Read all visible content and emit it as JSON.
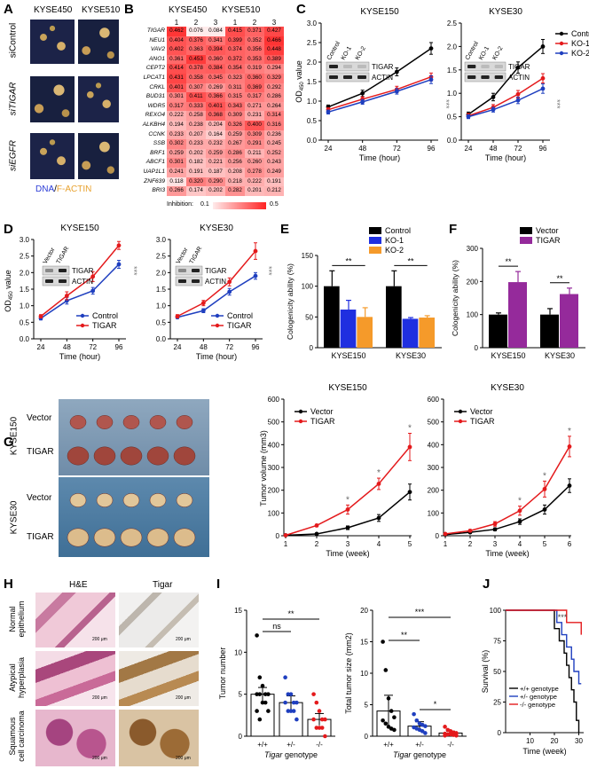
{
  "panels": {
    "A": {
      "label": "A",
      "col1": "KYSE450",
      "col2": "KYSE510",
      "rows": [
        "siControl",
        "siTIGAR",
        "siEGFR"
      ],
      "legend_a": "DNA",
      "legend_sep": "/",
      "legend_b": "F-ACTIN"
    },
    "B": {
      "label": "B",
      "col1": "KYSE450",
      "col2": "KYSE510",
      "reps": [
        "1",
        "2",
        "3",
        "1",
        "2",
        "3"
      ],
      "genes": [
        "TIGAR",
        "NEU1",
        "VAV2",
        "ANO1",
        "CEPT2",
        "LPCAT1",
        "CRKL",
        "BUD31",
        "WDR5",
        "REXO4",
        "ALKBH4",
        "CCNK",
        "SSB",
        "BRF1",
        "ABCF1",
        "UAP1L1",
        "ZNF639",
        "BRI3"
      ],
      "values": [
        [
          0.462,
          0.076,
          0.084,
          0.415,
          0.371,
          0.427
        ],
        [
          0.404,
          0.376,
          0.341,
          0.399,
          0.352,
          0.466
        ],
        [
          0.402,
          0.363,
          0.394,
          0.374,
          0.356,
          0.448
        ],
        [
          0.361,
          0.453,
          0.36,
          0.372,
          0.353,
          0.389
        ],
        [
          0.414,
          0.378,
          0.384,
          0.354,
          0.319,
          0.294
        ],
        [
          0.431,
          0.358,
          0.345,
          0.323,
          0.36,
          0.329
        ],
        [
          0.401,
          0.307,
          0.269,
          0.311,
          0.369,
          0.292
        ],
        [
          0.301,
          0.411,
          0.366,
          0.315,
          0.317,
          0.286
        ],
        [
          0.317,
          0.333,
          0.401,
          0.343,
          0.271,
          0.264
        ],
        [
          0.222,
          0.258,
          0.368,
          0.309,
          0.231,
          0.314
        ],
        [
          0.194,
          0.238,
          0.204,
          0.326,
          0.4,
          0.316
        ],
        [
          0.233,
          0.207,
          0.164,
          0.259,
          0.309,
          0.236
        ],
        [
          0.302,
          0.233,
          0.232,
          0.267,
          0.291,
          0.245
        ],
        [
          0.259,
          0.202,
          0.259,
          0.286,
          0.211,
          0.252
        ],
        [
          0.301,
          0.182,
          0.221,
          0.256,
          0.26,
          0.243
        ],
        [
          0.241,
          0.191,
          0.187,
          0.208,
          0.278,
          0.249
        ],
        [
          0.118,
          0.32,
          0.29,
          0.218,
          0.222,
          0.191
        ],
        [
          0.266,
          0.174,
          0.202,
          0.282,
          0.201,
          0.212
        ]
      ],
      "scale_label": "Inhibition:",
      "scale_min": "0.1",
      "scale_max": "0.5"
    },
    "C": {
      "label": "C",
      "left_title": "KYSE150",
      "right_title": "KYSE30",
      "ylabel": "OD",
      "ysub": "450",
      "ysuffix": " value",
      "xlabel": "Time (hour)",
      "blot_cols": [
        "Control",
        "KO-1",
        "KO-2"
      ],
      "blot_rows": [
        "TIGAR",
        "ACTIN"
      ],
      "sig": "***"
    },
    "D": {
      "label": "D",
      "left_title": "KYSE150",
      "right_title": "KYSE30",
      "blot_cols": [
        "Vector",
        "TIGAR"
      ],
      "blot_rows": [
        "TIGAR",
        "ACTIN"
      ],
      "sig": "***"
    },
    "E": {
      "label": "E",
      "sig": "**"
    },
    "F": {
      "label": "F",
      "sig": "**"
    },
    "G": {
      "label": "G",
      "photo_side": [
        "KYSE150",
        "KYSE30"
      ],
      "photo_rows": [
        "Vector",
        "TIGAR",
        "Vector",
        "TIGAR"
      ],
      "sig": "*"
    },
    "H": {
      "label": "H",
      "cols": [
        "H&E",
        "Tigar"
      ],
      "rows": [
        "Normal\nepithelium",
        "Atypical\nhyperplasia",
        "Squamous\ncell carcinoma"
      ],
      "scalebar": "200 μm"
    },
    "I": {
      "label": "I",
      "sig_ns": "ns",
      "sig2": "**",
      "sig3": "***",
      "sig1": "*",
      "genotype_word": "Tigar",
      "genotype_suffix": " genotype"
    },
    "J": {
      "label": "J",
      "sig": "***"
    }
  },
  "chart_data": [
    {
      "id": "C-left",
      "type": "line",
      "title": "KYSE150",
      "x": [
        24,
        48,
        72,
        96
      ],
      "xlabel": "Time (hour)",
      "ylabel": "OD450 value",
      "ylim": [
        0,
        3.0
      ],
      "yticks": [
        0,
        0.5,
        1.0,
        1.5,
        2.0,
        2.5,
        3.0
      ],
      "series": [
        {
          "name": "Control",
          "color": "#000000",
          "values": [
            0.85,
            1.2,
            1.75,
            2.35
          ],
          "err": [
            0.05,
            0.08,
            0.1,
            0.15
          ]
        },
        {
          "name": "KO-1",
          "color": "#e41a1c",
          "values": [
            0.78,
            1.05,
            1.3,
            1.62
          ],
          "err": [
            0.05,
            0.06,
            0.08,
            0.1
          ]
        },
        {
          "name": "KO-2",
          "color": "#1f3fbf",
          "values": [
            0.72,
            0.98,
            1.25,
            1.55
          ],
          "err": [
            0.05,
            0.06,
            0.07,
            0.1
          ]
        }
      ]
    },
    {
      "id": "C-right",
      "type": "line",
      "title": "KYSE30",
      "x": [
        24,
        48,
        72,
        96
      ],
      "xlabel": "Time (hour)",
      "ylim": [
        0,
        2.5
      ],
      "yticks": [
        0,
        0.5,
        1.0,
        1.5,
        2.0,
        2.5
      ],
      "legend": [
        "Control",
        "KO-1",
        "KO-2"
      ],
      "series": [
        {
          "name": "Control",
          "color": "#000000",
          "values": [
            0.55,
            0.92,
            1.55,
            2.0
          ],
          "err": [
            0.05,
            0.08,
            0.12,
            0.15
          ]
        },
        {
          "name": "KO-1",
          "color": "#e41a1c",
          "values": [
            0.52,
            0.7,
            0.98,
            1.32
          ],
          "err": [
            0.05,
            0.06,
            0.08,
            0.1
          ]
        },
        {
          "name": "KO-2",
          "color": "#1f3fbf",
          "values": [
            0.5,
            0.65,
            0.85,
            1.1
          ],
          "err": [
            0.04,
            0.05,
            0.07,
            0.1
          ]
        }
      ]
    },
    {
      "id": "D-left",
      "type": "line",
      "title": "KYSE150",
      "x": [
        24,
        48,
        72,
        96
      ],
      "xlabel": "Time (hour)",
      "ylabel": "OD450 value",
      "ylim": [
        0,
        3.0
      ],
      "yticks": [
        0,
        0.5,
        1.0,
        1.5,
        2.0,
        2.5,
        3.0
      ],
      "legend": [
        "Control",
        "TIGAR"
      ],
      "series": [
        {
          "name": "Control",
          "color": "#1f3fbf",
          "values": [
            0.62,
            1.15,
            1.45,
            2.25
          ],
          "err": [
            0.05,
            0.1,
            0.1,
            0.12
          ]
        },
        {
          "name": "TIGAR",
          "color": "#e41a1c",
          "values": [
            0.68,
            1.3,
            1.88,
            2.82
          ],
          "err": [
            0.05,
            0.12,
            0.15,
            0.12
          ]
        }
      ]
    },
    {
      "id": "D-right",
      "type": "line",
      "title": "KYSE30",
      "x": [
        24,
        48,
        72,
        96
      ],
      "xlabel": "Time (hour)",
      "ylim": [
        0,
        3.0
      ],
      "yticks": [
        0,
        0.5,
        1.0,
        1.5,
        2.0,
        2.5,
        3.0
      ],
      "legend": [
        "Control",
        "TIGAR"
      ],
      "series": [
        {
          "name": "Control",
          "color": "#1f3fbf",
          "values": [
            0.65,
            0.85,
            1.42,
            1.9
          ],
          "err": [
            0.04,
            0.06,
            0.1,
            0.1
          ]
        },
        {
          "name": "TIGAR",
          "color": "#e41a1c",
          "values": [
            0.68,
            1.08,
            1.72,
            2.65
          ],
          "err": [
            0.05,
            0.08,
            0.12,
            0.25
          ]
        }
      ]
    },
    {
      "id": "E",
      "type": "bar",
      "categories": [
        "KYSE150",
        "KYSE30"
      ],
      "ylabel": "Cologenicity ability (%)",
      "ylim": [
        0,
        150
      ],
      "yticks": [
        0,
        50,
        100,
        150
      ],
      "legend": [
        "Control",
        "KO-1",
        "KO-2"
      ],
      "series": [
        {
          "name": "Control",
          "color": "#000000",
          "values": [
            100,
            100
          ],
          "err": [
            25,
            25
          ]
        },
        {
          "name": "KO-1",
          "color": "#1f2fe0",
          "values": [
            62,
            47
          ],
          "err": [
            15,
            2
          ]
        },
        {
          "name": "KO-2",
          "color": "#f59a2a",
          "values": [
            50,
            49
          ],
          "err": [
            15,
            3
          ]
        }
      ]
    },
    {
      "id": "F",
      "type": "bar",
      "categories": [
        "KYSE150",
        "KYSE30"
      ],
      "ylabel": "Cologenicity ability (%)",
      "ylim": [
        0,
        300
      ],
      "yticks": [
        0,
        100,
        200,
        300
      ],
      "legend": [
        "Vector",
        "TIGAR"
      ],
      "series": [
        {
          "name": "Vector",
          "color": "#000000",
          "values": [
            100,
            100
          ],
          "err": [
            5,
            18
          ]
        },
        {
          "name": "TIGAR",
          "color": "#952a9b",
          "values": [
            198,
            162
          ],
          "err": [
            32,
            18
          ]
        }
      ]
    },
    {
      "id": "G-left",
      "type": "line",
      "title": "KYSE150",
      "x": [
        1,
        2,
        3,
        4,
        5
      ],
      "xlabel": "Time (week)",
      "ylabel": "Tumor volume (mm3)",
      "ylim": [
        0,
        600
      ],
      "yticks": [
        0,
        100,
        200,
        300,
        400,
        500,
        600
      ],
      "legend": [
        "Vector",
        "TIGAR"
      ],
      "series": [
        {
          "name": "Vector",
          "color": "#000000",
          "values": [
            2,
            8,
            35,
            78,
            192
          ],
          "err": [
            1,
            3,
            8,
            15,
            35
          ]
        },
        {
          "name": "TIGAR",
          "color": "#e41a1c",
          "values": [
            2,
            45,
            115,
            228,
            390
          ],
          "err": [
            1,
            5,
            20,
            25,
            60
          ]
        }
      ]
    },
    {
      "id": "G-right",
      "type": "line",
      "title": "KYSE30",
      "x": [
        1,
        2,
        3,
        4,
        5,
        6
      ],
      "xlabel": "Time (week)",
      "ylim": [
        0,
        600
      ],
      "yticks": [
        0,
        100,
        200,
        300,
        400,
        500,
        600
      ],
      "legend": [
        "Vector",
        "TIGAR"
      ],
      "series": [
        {
          "name": "Vector",
          "color": "#000000",
          "values": [
            5,
            15,
            28,
            62,
            115,
            220
          ],
          "err": [
            2,
            4,
            6,
            12,
            20,
            30
          ]
        },
        {
          "name": "TIGAR",
          "color": "#e41a1c",
          "values": [
            8,
            22,
            52,
            110,
            205,
            392
          ],
          "err": [
            2,
            5,
            10,
            20,
            35,
            45
          ]
        }
      ]
    },
    {
      "id": "I-left",
      "type": "scatter",
      "categories": [
        "+/+",
        "+/-",
        "-/-"
      ],
      "ylabel": "Tumor number",
      "ylim": [
        0,
        15
      ],
      "yticks": [
        0,
        5,
        10,
        15
      ],
      "means": [
        5.0,
        4.0,
        2.0
      ],
      "err": [
        0.8,
        0.8,
        0.7
      ],
      "points": [
        [
          12,
          7,
          6,
          5,
          5,
          5,
          5,
          4,
          4,
          3,
          3,
          2
        ],
        [
          7,
          5,
          5,
          4,
          4,
          4,
          3,
          3,
          3,
          2
        ],
        [
          5,
          4,
          3,
          2,
          2,
          2,
          1,
          1,
          1,
          0
        ]
      ]
    },
    {
      "id": "I-right",
      "type": "scatter",
      "categories": [
        "+/+",
        "+/-",
        "-/-"
      ],
      "ylabel": "Total tumor size (mm2)",
      "ylim": [
        0,
        20
      ],
      "yticks": [
        0,
        5,
        10,
        15,
        20
      ],
      "means": [
        4.0,
        1.6,
        0.5
      ],
      "err": [
        2.5,
        0.7,
        0.3
      ],
      "points": [
        [
          15,
          10.5,
          6,
          4,
          3,
          2.5,
          2,
          1.5,
          1.2,
          1
        ],
        [
          3.5,
          2.5,
          2,
          1.8,
          1.6,
          1.4,
          1.2,
          1,
          0.8,
          0.5
        ],
        [
          1.5,
          1,
          0.8,
          0.6,
          0.5,
          0.4,
          0.3,
          0.3,
          0.2,
          0.1,
          0.1
        ]
      ]
    },
    {
      "id": "J",
      "type": "line",
      "xlabel": "Time (week)",
      "ylabel": "Survival (%)",
      "xlim": [
        0,
        32
      ],
      "ylim": [
        0,
        100
      ],
      "xticks": [
        10,
        20,
        30
      ],
      "yticks": [
        0,
        25,
        50,
        75,
        100
      ],
      "legend": [
        "+/+ genotype",
        "+/- genotype",
        "-/- genotype"
      ],
      "series": [
        {
          "name": "+/+ genotype",
          "color": "#000000",
          "steps": [
            [
              0,
              100
            ],
            [
              20,
              100
            ],
            [
              20,
              85
            ],
            [
              22,
              75
            ],
            [
              24,
              65
            ],
            [
              25,
              55
            ],
            [
              26,
              45
            ],
            [
              27,
              35
            ],
            [
              28,
              25
            ],
            [
              29,
              10
            ],
            [
              30,
              0
            ]
          ]
        },
        {
          "name": "+/- genotype",
          "color": "#1f3fbf",
          "steps": [
            [
              0,
              100
            ],
            [
              21,
              100
            ],
            [
              21,
              90
            ],
            [
              23,
              80
            ],
            [
              25,
              70
            ],
            [
              27,
              60
            ],
            [
              28,
              50
            ],
            [
              30,
              40
            ],
            [
              31,
              40
            ]
          ]
        },
        {
          "name": "-/- genotype",
          "color": "#e41a1c",
          "steps": [
            [
              0,
              100
            ],
            [
              25,
              100
            ],
            [
              25,
              90
            ],
            [
              31,
              90
            ],
            [
              31,
              80
            ]
          ]
        }
      ]
    }
  ]
}
